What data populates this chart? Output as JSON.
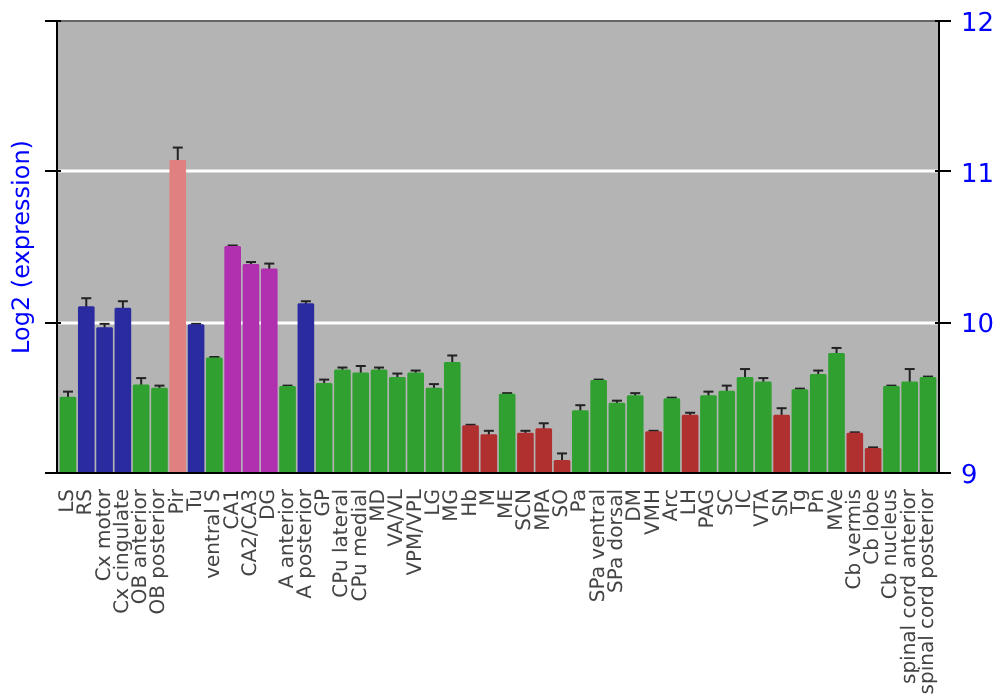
{
  "chart_data": {
    "type": "bar",
    "ylabel": "Log2 (expression)",
    "categories": [
      "LS",
      "RS",
      "Cx motor",
      "Cx cingulate",
      "OB anterior",
      "OB posterior",
      "Pir",
      "Tu",
      "ventral S",
      "CA1",
      "CA2/CA3",
      "DG",
      "A anterior",
      "A posterior",
      "GP",
      "CPu lateral",
      "CPu medial",
      "MD",
      "VA/VL",
      "VPM/VPL",
      "LG",
      "MG",
      "Hb",
      "M",
      "ME",
      "SCN",
      "MPA",
      "SO",
      "Pa",
      "SPa ventral",
      "SPa dorsal",
      "DM",
      "VMH",
      "Arc",
      "LH",
      "PAG",
      "SC",
      "IC",
      "VTA",
      "SN",
      "Tg",
      "Pn",
      "MVe",
      "Cb vermis",
      "Cb lobe",
      "Cb nucleus",
      "spinal cord anterior",
      "spinal cord posterior"
    ],
    "values": [
      9.5,
      10.1,
      9.96,
      10.09,
      9.58,
      9.56,
      11.07,
      9.98,
      9.76,
      10.5,
      10.38,
      10.35,
      9.57,
      10.12,
      9.59,
      9.68,
      9.66,
      9.68,
      9.63,
      9.66,
      9.56,
      9.73,
      9.31,
      9.25,
      9.52,
      9.26,
      9.29,
      9.08,
      9.41,
      9.61,
      9.46,
      9.51,
      9.27,
      9.49,
      9.38,
      9.51,
      9.54,
      9.63,
      9.6,
      9.38,
      9.55,
      9.65,
      9.79,
      9.26,
      9.16,
      9.57,
      9.6,
      9.63
    ],
    "errors": [
      0.04,
      0.06,
      0.03,
      0.05,
      0.05,
      0.02,
      0.09,
      0.01,
      0.01,
      0.01,
      0.02,
      0.04,
      0.01,
      0.02,
      0.03,
      0.02,
      0.05,
      0.02,
      0.03,
      0.02,
      0.03,
      0.05,
      0.01,
      0.03,
      0.01,
      0.02,
      0.04,
      0.05,
      0.04,
      0.01,
      0.02,
      0.02,
      0.01,
      0.01,
      0.02,
      0.03,
      0.04,
      0.06,
      0.03,
      0.05,
      0.01,
      0.03,
      0.04,
      0.01,
      0.01,
      0.01,
      0.09,
      0.01
    ],
    "colors": [
      "#30a030",
      "#2b2ba0",
      "#2b2ba0",
      "#2b2ba0",
      "#30a030",
      "#30a030",
      "#e08080",
      "#2b2ba0",
      "#30a030",
      "#b030b0",
      "#b030b0",
      "#b030b0",
      "#30a030",
      "#2b2ba0",
      "#30a030",
      "#30a030",
      "#30a030",
      "#30a030",
      "#30a030",
      "#30a030",
      "#30a030",
      "#30a030",
      "#b03030",
      "#b03030",
      "#30a030",
      "#b03030",
      "#b03030",
      "#b03030",
      "#30a030",
      "#30a030",
      "#30a030",
      "#30a030",
      "#b03030",
      "#30a030",
      "#b03030",
      "#30a030",
      "#30a030",
      "#30a030",
      "#30a030",
      "#b03030",
      "#30a030",
      "#30a030",
      "#30a030",
      "#b03030",
      "#b03030",
      "#30a030",
      "#30a030",
      "#30a030"
    ],
    "ylim": [
      9,
      12
    ],
    "yticks": [
      9,
      10,
      11,
      12
    ],
    "grid": "y"
  }
}
